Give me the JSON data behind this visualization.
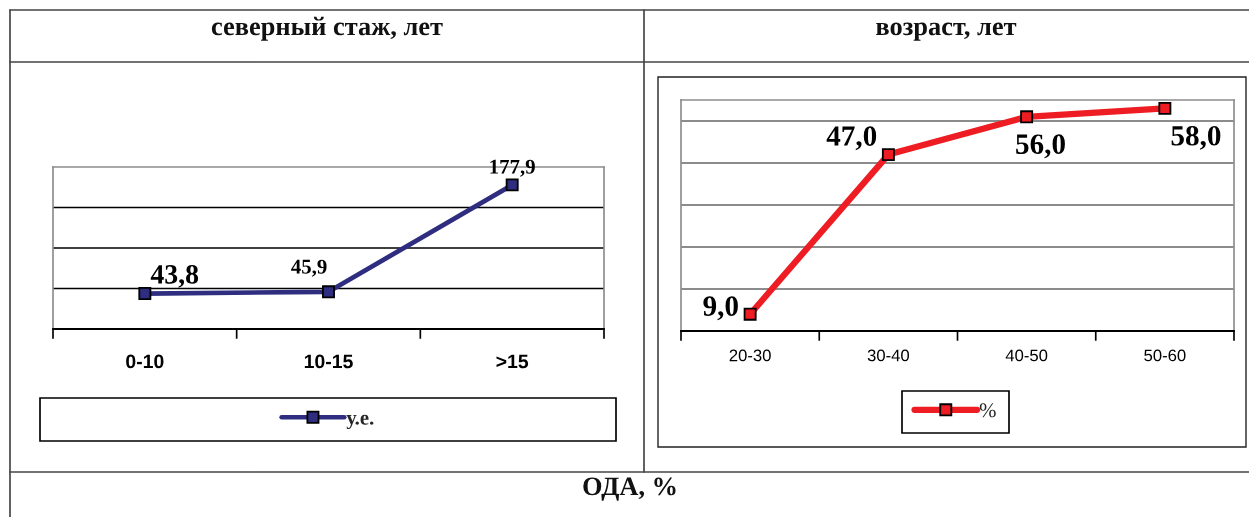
{
  "chart_data": [
    {
      "type": "line",
      "title": "северный стаж, лет",
      "categories": [
        "0-10",
        "10-15",
        ">15"
      ],
      "series": [
        {
          "name": "у.е.",
          "color": "#2e2d7f",
          "values": [
            43.8,
            45.9,
            177.9
          ],
          "value_labels": [
            "43,8",
            "45,9",
            "177,9"
          ]
        }
      ],
      "ylim": [
        0,
        200
      ],
      "yticks": [
        {
          "value": 50,
          "label": null
        },
        {
          "value": 100,
          "label": null
        },
        {
          "value": 150,
          "label": null
        }
      ],
      "grid": "y",
      "legend": "bottom",
      "marker": "square",
      "tick_labels": "x"
    },
    {
      "type": "line",
      "title": "возраст, лет",
      "categories": [
        "20-30",
        "30-40",
        "40-50",
        "50-60"
      ],
      "series": [
        {
          "name": "%",
          "color": "#ee1d23",
          "values": [
            9.0,
            47.0,
            56.0,
            58.0
          ],
          "value_labels": [
            "9,0",
            "47,0",
            "56,0",
            "58,0"
          ]
        }
      ],
      "ylim": [
        5,
        60
      ],
      "yticks": [
        {
          "value": 15,
          "label": null
        },
        {
          "value": 25,
          "label": null
        },
        {
          "value": 35,
          "label": null
        },
        {
          "value": 45,
          "label": null
        },
        {
          "value": 55,
          "label": null
        }
      ],
      "grid": "y",
      "legend": "bottom",
      "marker": "square",
      "tick_labels": "x"
    },
    {
      "type": "other",
      "title": "ОДА, %"
    }
  ]
}
